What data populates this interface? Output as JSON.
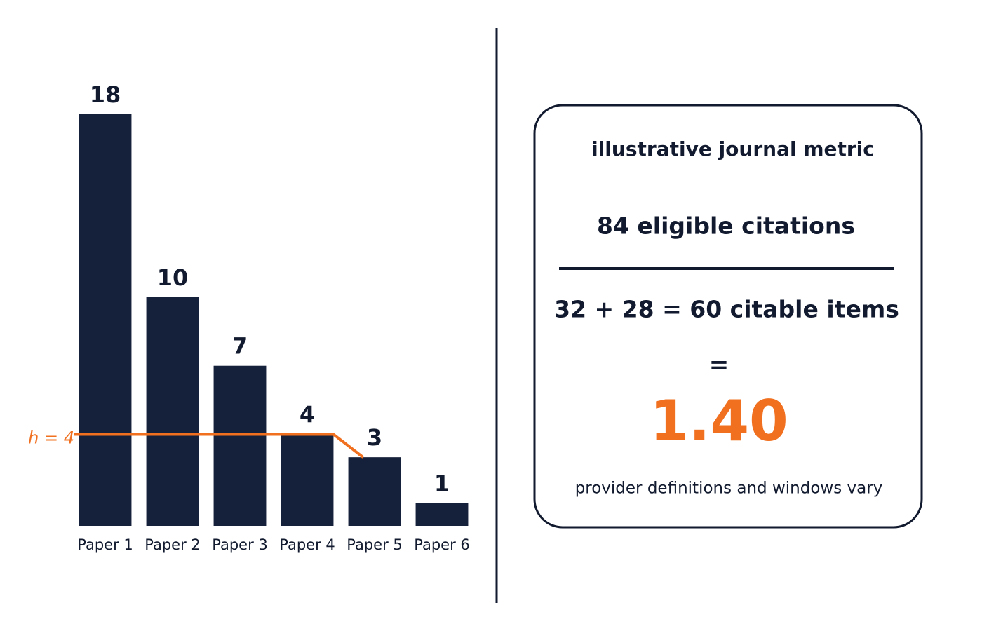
{
  "chart_data": {
    "type": "bar",
    "categories": [
      "Paper 1",
      "Paper 2",
      "Paper 3",
      "Paper 4",
      "Paper 5",
      "Paper 6"
    ],
    "values": [
      18,
      10,
      7,
      4,
      3,
      1
    ],
    "color": "#15203a",
    "ylim": [
      0,
      18
    ],
    "h_line": {
      "label": "h = 4",
      "value": 4,
      "color": "#f07020"
    }
  },
  "metric_card": {
    "title": "illustrative journal metric",
    "numerator": "84 eligible citations",
    "denominator": "32 + 28 = 60 citable items",
    "equals": "=",
    "result": "1.40",
    "note": "provider definitions and windows vary"
  }
}
